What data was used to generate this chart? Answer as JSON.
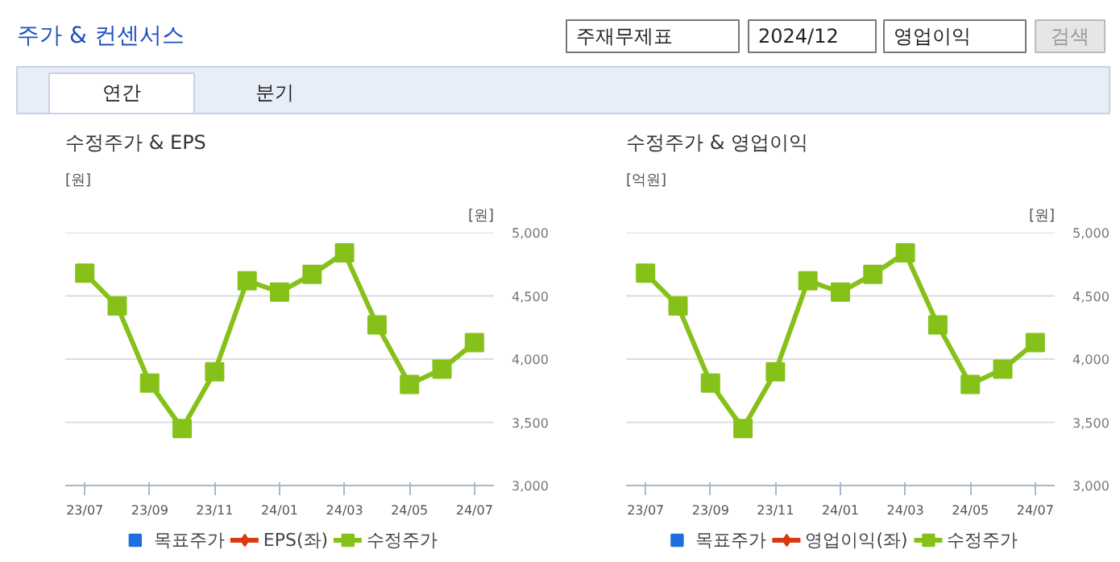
{
  "chart_data": [
    {
      "type": "other",
      "title": "주가 & 컨센서스",
      "annotations": [
        "주재무제표",
        "2024/12",
        "영업이익",
        "검색",
        "연간",
        "분기"
      ]
    },
    {
      "type": "line",
      "title": "수정주가 & EPS",
      "ylabel": "[원]",
      "y2label": "[원]",
      "categories": [
        "23/07",
        null,
        "23/09",
        null,
        "23/11",
        null,
        "24/01",
        null,
        "24/03",
        null,
        "24/05",
        null,
        "24/07"
      ],
      "series": [
        {
          "name": "목표주가",
          "type": "bar",
          "color": "#1f6ee0",
          "values": [
            null,
            null,
            null,
            null,
            null,
            null,
            null,
            null,
            null,
            null,
            null,
            null,
            null
          ]
        },
        {
          "name": "EPS(좌)",
          "type": "line",
          "marker": "diamond",
          "color": "#d93a12",
          "values": [
            null,
            null,
            null,
            null,
            null,
            null,
            null,
            null,
            null,
            null,
            null,
            null,
            null
          ]
        },
        {
          "name": "수정주가",
          "type": "line",
          "marker": "square",
          "axis": "y2",
          "color": "#86c11a",
          "values": [
            4680,
            4420,
            3810,
            3450,
            3900,
            4620,
            4530,
            4670,
            4840,
            4270,
            3800,
            3920,
            4130
          ]
        }
      ],
      "y2lim": [
        3000,
        5000
      ],
      "y2ticks": [
        {
          "value": 3000,
          "label": "3,000"
        },
        {
          "value": 3500,
          "label": "3,500"
        },
        {
          "value": 4000,
          "label": "4,000"
        },
        {
          "value": 4500,
          "label": "4,500"
        },
        {
          "value": 5000,
          "label": "5,000"
        }
      ],
      "grid": "y",
      "legend": "bottom"
    },
    {
      "type": "line",
      "title": "수정주가 & 영업이익",
      "ylabel": "[억원]",
      "y2label": "[원]",
      "categories": [
        "23/07",
        null,
        "23/09",
        null,
        "23/11",
        null,
        "24/01",
        null,
        "24/03",
        null,
        "24/05",
        null,
        "24/07"
      ],
      "series": [
        {
          "name": "목표주가",
          "type": "bar",
          "color": "#1f6ee0",
          "values": [
            null,
            null,
            null,
            null,
            null,
            null,
            null,
            null,
            null,
            null,
            null,
            null,
            null
          ]
        },
        {
          "name": "영업이익(좌)",
          "type": "line",
          "marker": "diamond",
          "color": "#d93a12",
          "values": [
            null,
            null,
            null,
            null,
            null,
            null,
            null,
            null,
            null,
            null,
            null,
            null,
            null
          ]
        },
        {
          "name": "수정주가",
          "type": "line",
          "marker": "square",
          "axis": "y2",
          "color": "#86c11a",
          "values": [
            4680,
            4420,
            3810,
            3450,
            3900,
            4620,
            4530,
            4670,
            4840,
            4270,
            3800,
            3920,
            4130
          ]
        }
      ],
      "y2lim": [
        3000,
        5000
      ],
      "y2ticks": [
        {
          "value": 3000,
          "label": "3,000"
        },
        {
          "value": 3500,
          "label": "3,500"
        },
        {
          "value": 4000,
          "label": "4,000"
        },
        {
          "value": 4500,
          "label": "4,500"
        },
        {
          "value": 5000,
          "label": "5,000"
        }
      ],
      "grid": "y",
      "legend": "bottom"
    }
  ]
}
